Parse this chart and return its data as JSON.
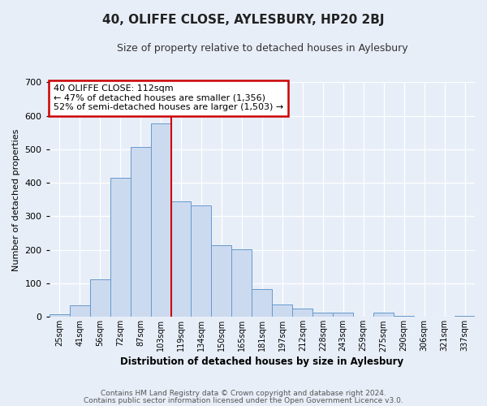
{
  "title": "40, OLIFFE CLOSE, AYLESBURY, HP20 2BJ",
  "subtitle": "Size of property relative to detached houses in Aylesbury",
  "xlabel": "Distribution of detached houses by size in Aylesbury",
  "ylabel": "Number of detached properties",
  "bar_labels": [
    "25sqm",
    "41sqm",
    "56sqm",
    "72sqm",
    "87sqm",
    "103sqm",
    "119sqm",
    "134sqm",
    "150sqm",
    "165sqm",
    "181sqm",
    "197sqm",
    "212sqm",
    "228sqm",
    "243sqm",
    "259sqm",
    "275sqm",
    "290sqm",
    "306sqm",
    "321sqm",
    "337sqm"
  ],
  "bar_values": [
    8,
    35,
    113,
    415,
    507,
    577,
    345,
    333,
    213,
    202,
    83,
    36,
    25,
    12,
    12,
    0,
    12,
    3,
    0,
    0,
    2
  ],
  "bar_color": "#ccdaf0",
  "bar_edge_color": "#6699cc",
  "vline_x": 6.0,
  "vline_color": "#cc0000",
  "annotation_title": "40 OLIFFE CLOSE: 112sqm",
  "annotation_line1": "← 47% of detached houses are smaller (1,356)",
  "annotation_line2": "52% of semi-detached houses are larger (1,503) →",
  "annotation_box_color": "#cc0000",
  "ylim": [
    0,
    700
  ],
  "yticks": [
    0,
    100,
    200,
    300,
    400,
    500,
    600,
    700
  ],
  "footer1": "Contains HM Land Registry data © Crown copyright and database right 2024.",
  "footer2": "Contains public sector information licensed under the Open Government Licence v3.0.",
  "fig_bg_color": "#e8eef8",
  "plot_bg_color": "#e8eef8"
}
